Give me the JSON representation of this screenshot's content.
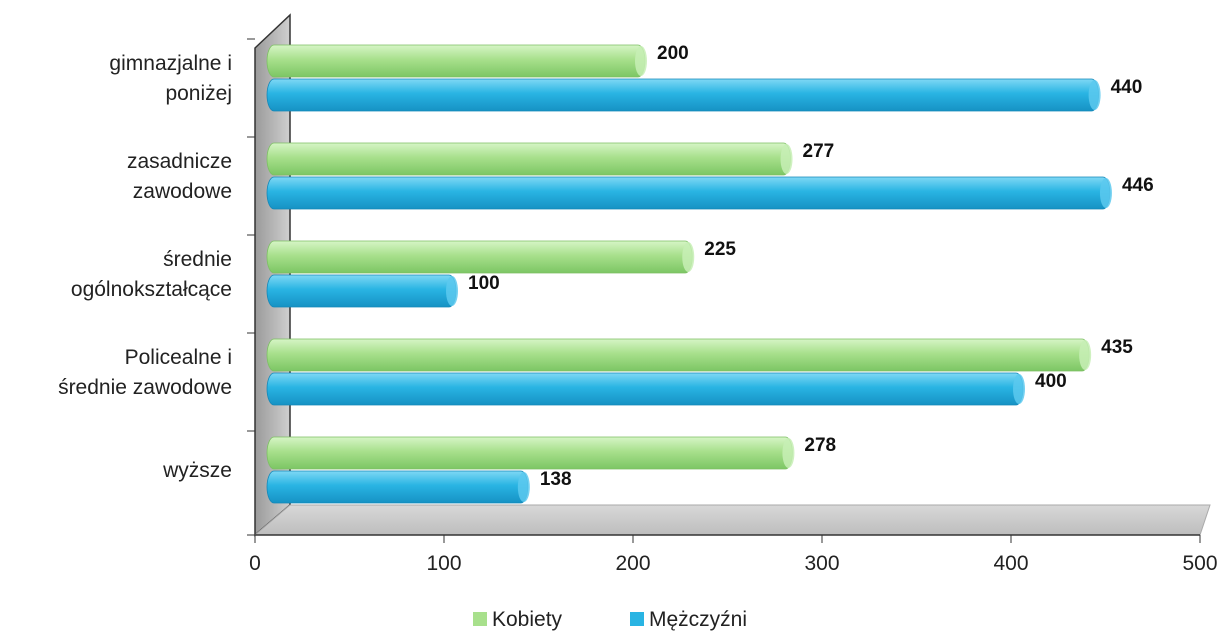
{
  "chart_data": {
    "type": "bar",
    "orientation": "horizontal",
    "title": "",
    "categories": [
      [
        "gimnazjalne i",
        "poniżej"
      ],
      [
        "zasadnicze",
        "zawodowe"
      ],
      [
        "średnie",
        "ogólnokształcące"
      ],
      [
        "Policealne  i",
        "średnie zawodowe"
      ],
      [
        "wyższe"
      ]
    ],
    "series": [
      {
        "name": "Kobiety",
        "color": "#a8e08c",
        "values": [
          200,
          277,
          225,
          435,
          278
        ]
      },
      {
        "name": "Mężczyźni",
        "color": "#29b4e3",
        "values": [
          440,
          446,
          100,
          400,
          138
        ]
      }
    ],
    "xlim": [
      0,
      500
    ],
    "xticks": [
      "0",
      "100",
      "200",
      "300",
      "400",
      "500"
    ],
    "grid": false,
    "legend_position": "bottom"
  }
}
